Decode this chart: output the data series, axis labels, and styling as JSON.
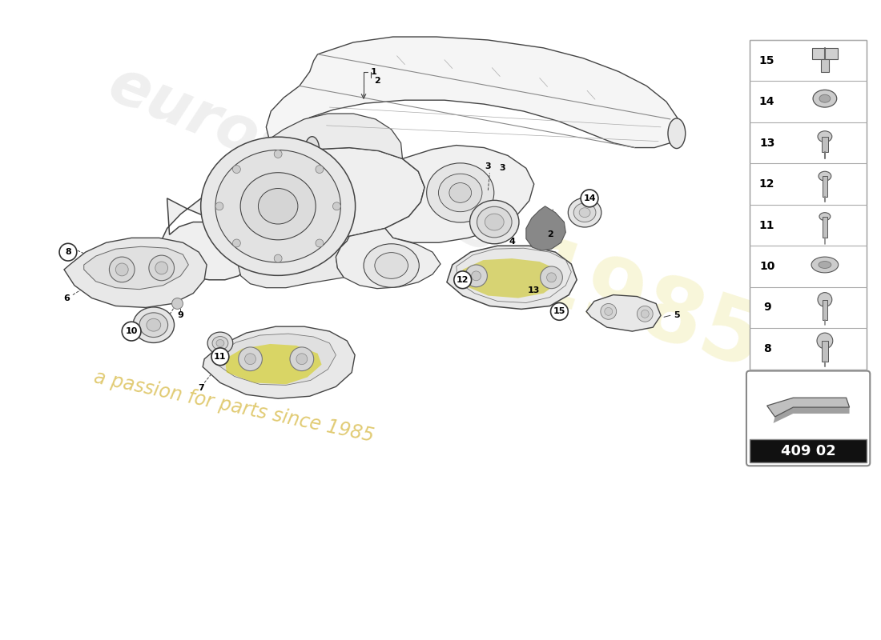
{
  "bg_color": "#ffffff",
  "subtitle": "409 02",
  "sidebar_items": [
    15,
    14,
    13,
    12,
    11,
    10,
    9,
    8
  ],
  "watermark_text1": "eurospartes",
  "watermark_text2": "a passion for parts since 1985",
  "line_color": "#444444",
  "part_label_positions": {
    "1": [
      450,
      668,
      450,
      688
    ],
    "2": [
      465,
      668,
      465,
      640
    ],
    "3": [
      610,
      560,
      595,
      530
    ],
    "4": [
      560,
      432,
      545,
      455
    ],
    "5": [
      760,
      378,
      740,
      395
    ],
    "6": [
      82,
      440,
      120,
      445
    ],
    "7": [
      245,
      360,
      265,
      395
    ],
    "8": [
      82,
      478,
      120,
      468
    ],
    "9": [
      200,
      418,
      215,
      433
    ],
    "10": [
      160,
      373,
      185,
      388
    ],
    "11": [
      260,
      368,
      265,
      393
    ],
    "12": [
      548,
      428,
      560,
      445
    ],
    "13": [
      630,
      418,
      620,
      435
    ],
    "14": [
      720,
      518,
      698,
      508
    ],
    "15": [
      685,
      390,
      680,
      408
    ]
  }
}
